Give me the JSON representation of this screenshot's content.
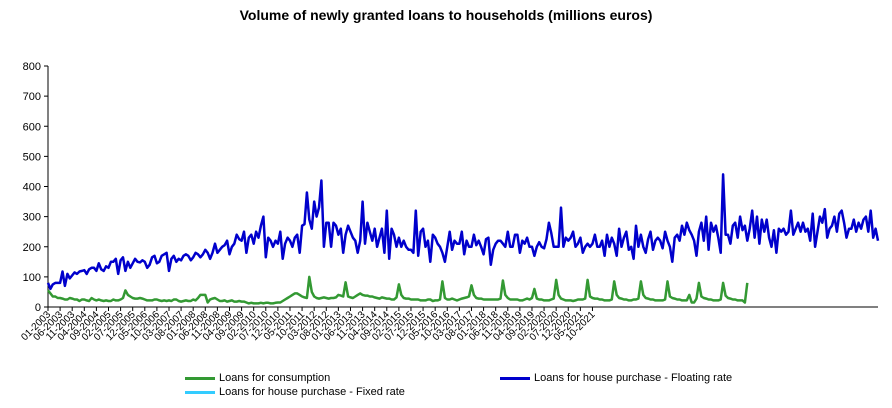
{
  "chart_data": {
    "type": "line",
    "title": "Volume of newly granted loans to households (millions euros)",
    "xlabel": "",
    "ylabel": "",
    "ylim": [
      0,
      800
    ],
    "yticks": [
      0,
      100,
      200,
      300,
      400,
      500,
      600,
      700,
      800
    ],
    "grid": false,
    "legend": "bottom",
    "x_tick_labels": [
      "01-2003",
      "06-2003",
      "11-2003",
      "04-2004",
      "09-2004",
      "02-2005",
      "07-2005",
      "12-2005",
      "05-2006",
      "10-2006",
      "03-2007",
      "08-2007",
      "01-2008",
      "06-2008",
      "11-2008",
      "04-2009",
      "09-2009",
      "02-2010",
      "07-2010",
      "12-2010",
      "05-2011",
      "10-2011",
      "03-2012",
      "08-2012",
      "01-2013",
      "06-2013",
      "11-2013",
      "04-2014",
      "09-2014",
      "02-2015",
      "07-2015",
      "12-2015",
      "05-2016",
      "10-2016",
      "03-2017",
      "08-2017",
      "01-2018",
      "06-2018",
      "11-2018",
      "04-2019",
      "09-2019",
      "02-2020",
      "07-2020",
      "12-2020",
      "05-2021",
      "10-2021"
    ],
    "series": [
      {
        "name": "Loans for consumption",
        "color": "#339933",
        "values": [
          55,
          45,
          35,
          35,
          30,
          30,
          28,
          25,
          25,
          30,
          28,
          25,
          25,
          20,
          25,
          25,
          22,
          20,
          30,
          25,
          22,
          25,
          22,
          20,
          22,
          20,
          20,
          25,
          22,
          22,
          25,
          30,
          55,
          40,
          35,
          30,
          28,
          28,
          30,
          28,
          25,
          22,
          22,
          22,
          25,
          25,
          22,
          20,
          22,
          20,
          22,
          20,
          25,
          25,
          20,
          18,
          20,
          22,
          20,
          20,
          25,
          22,
          30,
          40,
          40,
          40,
          15,
          25,
          28,
          30,
          25,
          20,
          20,
          22,
          18,
          20,
          22,
          18,
          18,
          20,
          18,
          18,
          15,
          12,
          14,
          12,
          12,
          12,
          14,
          12,
          14,
          14,
          12,
          12,
          14,
          15,
          15,
          20,
          25,
          30,
          35,
          40,
          45,
          45,
          40,
          35,
          32,
          30,
          100,
          50,
          35,
          30,
          28,
          30,
          32,
          30,
          28,
          30,
          30,
          32,
          40,
          38,
          35,
          82,
          35,
          32,
          30,
          35,
          40,
          45,
          40,
          38,
          38,
          35,
          35,
          32,
          30,
          28,
          32,
          30,
          28,
          28,
          25,
          25,
          32,
          75,
          40,
          30,
          28,
          28,
          25,
          25,
          25,
          25,
          22,
          22,
          22,
          25,
          25,
          20,
          22,
          22,
          25,
          85,
          30,
          25,
          25,
          28,
          25,
          22,
          25,
          28,
          30,
          32,
          35,
          72,
          40,
          30,
          28,
          28,
          25,
          25,
          25,
          25,
          25,
          25,
          25,
          28,
          88,
          40,
          30,
          25,
          25,
          25,
          25,
          22,
          22,
          25,
          28,
          25,
          30,
          60,
          28,
          25,
          25,
          22,
          22,
          22,
          25,
          28,
          90,
          40,
          28,
          25,
          22,
          22,
          22,
          20,
          22,
          25,
          25,
          25,
          28,
          90,
          35,
          30,
          28,
          28,
          25,
          25,
          22,
          22,
          22,
          25,
          85,
          40,
          30,
          28,
          25,
          25,
          22,
          22,
          25,
          25,
          28,
          85,
          40,
          30,
          28,
          25,
          25,
          22,
          22,
          22,
          22,
          25,
          85,
          35,
          30,
          28,
          25,
          25,
          22,
          22,
          22,
          40,
          15,
          15,
          28,
          80,
          35,
          30,
          28,
          25,
          25,
          22,
          22,
          22,
          25,
          80,
          38,
          30,
          28,
          25,
          25,
          22,
          22,
          22,
          15,
          80
        ]
      },
      {
        "name": "Loans for house purchase - Floating rate",
        "color": "#0000cc",
        "values": [
          80,
          60,
          75,
          80,
          80,
          80,
          118,
          70,
          110,
          95,
          105,
          115,
          110,
          118,
          120,
          122,
          110,
          125,
          130,
          130,
          120,
          145,
          125,
          120,
          135,
          130,
          150,
          150,
          160,
          110,
          155,
          165,
          120,
          150,
          130,
          145,
          160,
          150,
          148,
          155,
          150,
          130,
          140,
          165,
          170,
          145,
          150,
          170,
          175,
          180,
          120,
          160,
          170,
          150,
          160,
          155,
          170,
          175,
          170,
          155,
          165,
          180,
          175,
          165,
          175,
          190,
          180,
          160,
          180,
          210,
          180,
          190,
          200,
          205,
          220,
          175,
          200,
          210,
          240,
          225,
          220,
          250,
          180,
          230,
          240,
          210,
          250,
          230,
          270,
          300,
          165,
          230,
          220,
          200,
          220,
          210,
          250,
          160,
          210,
          230,
          220,
          200,
          230,
          240,
          180,
          270,
          275,
          380,
          290,
          260,
          350,
          300,
          330,
          420,
          200,
          280,
          280,
          200,
          280,
          270,
          240,
          260,
          180,
          240,
          270,
          250,
          230,
          220,
          180,
          220,
          350,
          210,
          280,
          250,
          220,
          260,
          200,
          230,
          260,
          180,
          320,
          160,
          260,
          240,
          200,
          230,
          200,
          220,
          200,
          190,
          190,
          180,
          320,
          170,
          250,
          260,
          200,
          220,
          150,
          240,
          230,
          210,
          200,
          180,
          150,
          200,
          250,
          190,
          220,
          210,
          210,
          250,
          175,
          220,
          200,
          200,
          240,
          205,
          220,
          200,
          175,
          225,
          230,
          140,
          190,
          210,
          220,
          220,
          210,
          200,
          250,
          200,
          200,
          240,
          240,
          180,
          220,
          210,
          230,
          200,
          200,
          170,
          200,
          215,
          200,
          195,
          225,
          280,
          245,
          200,
          200,
          200,
          330,
          200,
          230,
          220,
          230,
          250,
          200,
          210,
          230,
          180,
          200,
          210,
          200,
          210,
          240,
          200,
          200,
          220,
          170,
          240,
          200,
          230,
          210,
          170,
          260,
          200,
          230,
          250,
          190,
          200,
          160,
          270,
          200,
          240,
          200,
          180,
          225,
          250,
          190,
          220,
          230,
          220,
          195,
          250,
          220,
          200,
          150,
          230,
          240,
          220,
          270,
          240,
          280,
          255,
          240,
          220,
          170,
          250,
          280,
          220,
          300,
          190,
          280,
          250,
          270,
          230,
          180,
          440,
          240,
          240,
          210,
          270,
          280,
          230,
          300,
          255,
          270,
          220,
          260,
          320,
          230,
          300,
          210,
          290,
          250,
          290,
          230,
          200,
          255,
          180,
          260,
          250,
          260,
          240,
          250,
          320,
          240,
          260,
          280,
          250,
          280,
          250,
          260,
          220,
          310,
          200,
          250,
          300,
          280,
          325,
          230,
          260,
          270,
          300,
          250,
          310,
          320,
          280,
          230,
          260,
          260,
          290,
          250,
          280,
          260,
          290,
          300,
          250,
          320,
          230,
          260,
          220
        ]
      },
      {
        "name": "Loans for house purchase - Fixed rate",
        "color": "#33ccff",
        "values": [
          null,
          null,
          null,
          null,
          null,
          null,
          null,
          null,
          null,
          null,
          null,
          null,
          null,
          null,
          null,
          null,
          null,
          null,
          null,
          null,
          null,
          null,
          null,
          null,
          null,
          null,
          null,
          null,
          null,
          null,
          null,
          null,
          null,
          null,
          null,
          null,
          null,
          null,
          null,
          null,
          null,
          null,
          null,
          null,
          null,
          null,
          null,
          null,
          null,
          null,
          null,
          null,
          null,
          null,
          null,
          null,
          null,
          null,
          null,
          null,
          null,
          null,
          null,
          null,
          null,
          null,
          null,
          null,
          null,
          null,
          null,
          null,
          null,
          null,
          null,
          null,
          null,
          null,
          null,
          null,
          null,
          null,
          null,
          null,
          null,
          null,
          null,
          null,
          null,
          null,
          null,
          null,
          null,
          null,
          null,
          null,
          null,
          null,
          null,
          null,
          null,
          null,
          null,
          null,
          null,
          null,
          null,
          null,
          null,
          null,
          null,
          null,
          null,
          null,
          null,
          null,
          null,
          null,
          null,
          null,
          null,
          null,
          null,
          null,
          null,
          null,
          null,
          null,
          null,
          null,
          null,
          null,
          null,
          null,
          null,
          null,
          null,
          null,
          null,
          null,
          null,
          null,
          null,
          null,
          null,
          null,
          null,
          null,
          null,
          null,
          null,
          null,
          null,
          null,
          null,
          null,
          null,
          null,
          null,
          null,
          null,
          null,
          null,
          null,
          null,
          null,
          null,
          null,
          null,
          null,
          null,
          null,
          null,
          null,
          null,
          null,
          null,
          null,
          null,
          null,
          null,
          null,
          null,
          null,
          null,
          null,
          null,
          null,
          null,
          null,
          null,
          null,
          null,
          null,
          null,
          null,
          null,
          null,
          null,
          null,
          null,
          null,
          null,
          null,
          null,
          null,
          null,
          null,
          null,
          null,
          null,
          null,
          null,
          null,
          null,
          null,
          null,
          null,
          null,
          null,
          null,
          null,
          null,
          null,
          null,
          null,
          null,
          null,
          null,
          null,
          null,
          null,
          null,
          null,
          null,
          null,
          null,
          null,
          null,
          null,
          null,
          null,
          null,
          null,
          null,
          null,
          null,
          null,
          null,
          null,
          null,
          null,
          null,
          null,
          null,
          null,
          null,
          null,
          null,
          null,
          null,
          null,
          null,
          null,
          null,
          null,
          null,
          null,
          null,
          null,
          null,
          null,
          null,
          null,
          null,
          null,
          null,
          null,
          null,
          null,
          null,
          null,
          null,
          null,
          null,
          null,
          null,
          null,
          null,
          null,
          null,
          null,
          null,
          null,
          null,
          null,
          null,
          null,
          null,
          null,
          null,
          null,
          null,
          null,
          null,
          null,
          null,
          null,
          null,
          null,
          null,
          null,
          null,
          null,
          null,
          null,
          null,
          null,
          null,
          null,
          null,
          null,
          null,
          null,
          null,
          null,
          null,
          null,
          null,
          null,
          null,
          null,
          null,
          null,
          null,
          null,
          null,
          null,
          null,
          null,
          null,
          null,
          null
        ]
      }
    ]
  }
}
